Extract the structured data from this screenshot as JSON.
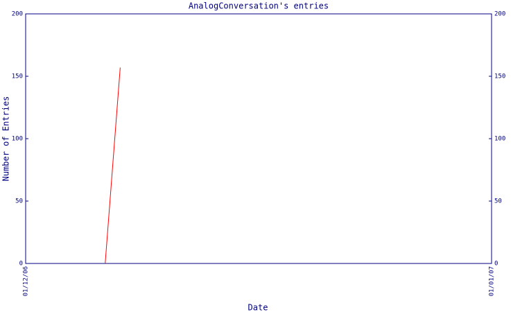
{
  "chart_data": {
    "type": "line",
    "title": "AnalogConversation's entries",
    "xlabel": "Date",
    "ylabel": "Number of Entries",
    "x": [
      "2006-12-06T07:00",
      "2006-12-07T07:00"
    ],
    "series": [
      {
        "name": "entries",
        "color": "#ff0000",
        "values": [
          0,
          157
        ]
      }
    ],
    "xlim": [
      "2006-12-01",
      "2007-01-01"
    ],
    "xticks": [
      {
        "value": "2006-12-01",
        "label": "01/12/06"
      },
      {
        "value": "2007-01-01",
        "label": "01/01/07"
      }
    ],
    "ylim": [
      0,
      200
    ],
    "yticks": [
      0,
      50,
      100,
      150,
      200
    ],
    "y2lim": [
      0,
      200
    ],
    "y2ticks": [
      0,
      50,
      100,
      150,
      200
    ],
    "axis_color": "#000080",
    "grid": false
  }
}
